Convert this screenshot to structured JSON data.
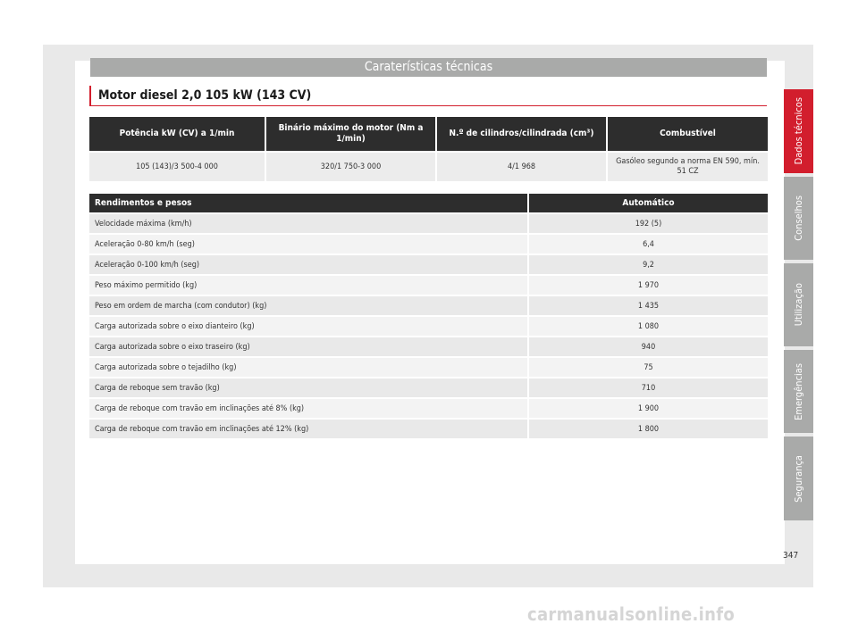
{
  "header": {
    "section_title": "Caraterísticas técnicas"
  },
  "page_title": "Motor diesel 2,0 105 kW (143 CV)",
  "spec_table": {
    "headers": [
      "Potência kW (CV) a 1/min",
      "Binário máximo do motor (Nm a 1/min)",
      "N.º de cilindros/cilindrada (cm³)",
      "Combustível"
    ],
    "row": [
      "105 (143)/3 500-4 000",
      "320/1 750-3 000",
      "4/1 968",
      "Gasóleo segundo a norma EN 590, mín. 51 CZ"
    ]
  },
  "performance_table": {
    "headers": [
      "Rendimentos e pesos",
      "Automático"
    ],
    "rows": [
      {
        "label": "Velocidade máxima (km/h)",
        "value": "192 (5)"
      },
      {
        "label": "Aceleração 0-80 km/h (seg)",
        "value": "6,4"
      },
      {
        "label": "Aceleração 0-100 km/h (seg)",
        "value": "9,2"
      },
      {
        "label": "Peso máximo permitido (kg)",
        "value": "1 970"
      },
      {
        "label": "Peso em ordem de marcha (com condutor) (kg)",
        "value": "1 435"
      },
      {
        "label": "Carga autorizada sobre o eixo dianteiro (kg)",
        "value": "1 080"
      },
      {
        "label": "Carga autorizada sobre o eixo traseiro (kg)",
        "value": "940"
      },
      {
        "label": "Carga autorizada sobre o tejadilho (kg)",
        "value": "75"
      },
      {
        "label": "Carga de reboque sem travão (kg)",
        "value": "710"
      },
      {
        "label": "Carga de reboque com travão em inclinações até 8% (kg)",
        "value": "1 900"
      },
      {
        "label": "Carga de reboque com travão em inclinações até 12% (kg)",
        "value": "1 800"
      }
    ]
  },
  "side_tabs": [
    {
      "label": "Dados técnicos",
      "color": "#d21e2d"
    },
    {
      "label": "Conselhos",
      "color": "#a9aaa9"
    },
    {
      "label": "Utilização",
      "color": "#a9aaa9"
    },
    {
      "label": "Emergências",
      "color": "#a9aaa9"
    },
    {
      "label": "Segurança",
      "color": "#a9aaa9"
    }
  ],
  "page_number": "347",
  "watermark": "carmanualsonline.info"
}
